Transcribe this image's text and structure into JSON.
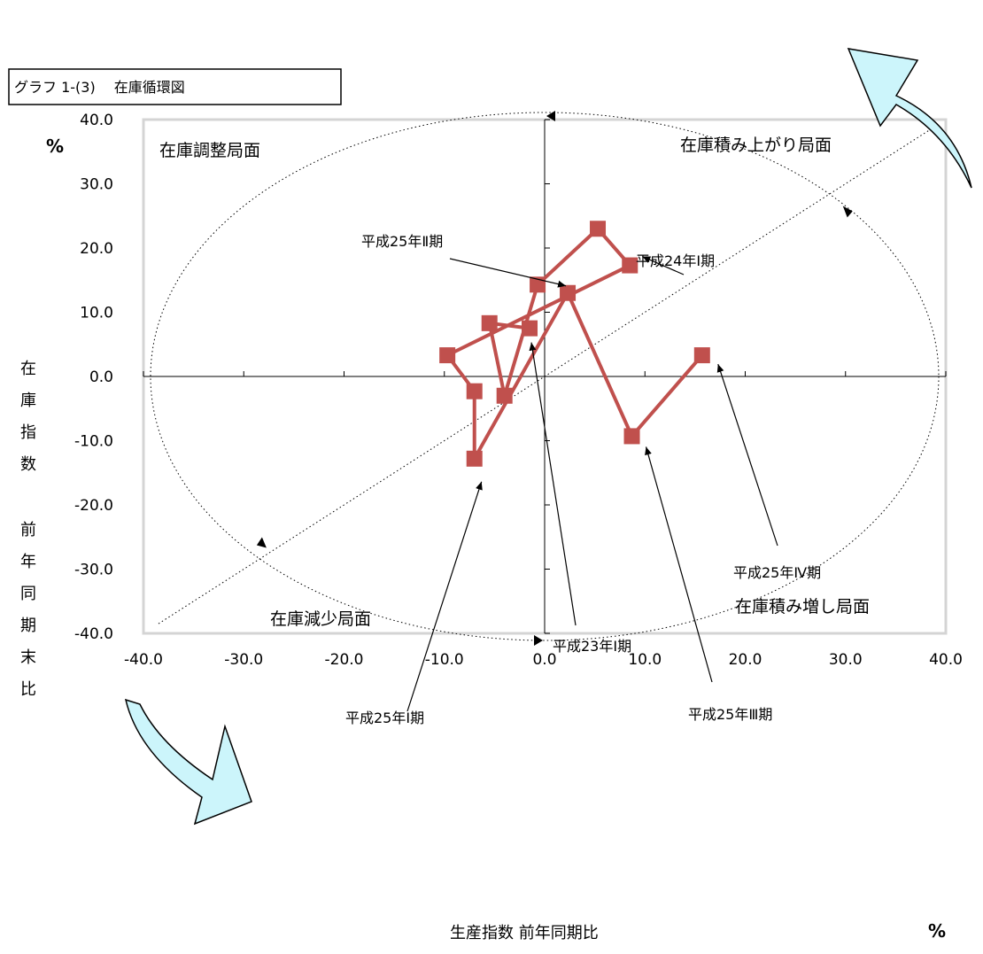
{
  "chart_data": {
    "type": "line",
    "title": "グラフ 1-(3)　 在庫循環図",
    "xlabel": "生産指数 前年同期比",
    "ylabel": "在庫指数前年同期末比",
    "x_unit": "%",
    "y_unit": "%",
    "xlim": [
      -40,
      40
    ],
    "ylim": [
      -40,
      40
    ],
    "x_ticks": [
      "-40.0",
      "-30.0",
      "-20.0",
      "-10.0",
      "0.0",
      "10.0",
      "20.0",
      "30.0",
      "40.0"
    ],
    "y_ticks": [
      "40.0",
      "30.0",
      "20.0",
      "10.0",
      "0.0",
      "-10.0",
      "-20.0",
      "-30.0",
      "-40.0"
    ],
    "grid": false,
    "series": [
      {
        "color": "#c0504d",
        "points": [
          {
            "x": -1.5,
            "y": 7.5
          },
          {
            "x": -5.5,
            "y": 8.3
          },
          {
            "x": -4.0,
            "y": -3.0
          },
          {
            "x": -0.7,
            "y": 14.3
          },
          {
            "x": 5.3,
            "y": 23.0
          },
          {
            "x": 8.5,
            "y": 17.3
          },
          {
            "x": -9.7,
            "y": 3.3
          },
          {
            "x": -7.0,
            "y": -2.3
          },
          {
            "x": -7.0,
            "y": -12.8
          },
          {
            "x": 2.3,
            "y": 13.0
          },
          {
            "x": 8.7,
            "y": -9.3
          },
          {
            "x": 15.7,
            "y": 3.3
          }
        ]
      }
    ],
    "phase_labels": {
      "top_left": "在庫調整局面",
      "top_right": "在庫積み上がり局面",
      "bottom_left": "在庫減少局面",
      "bottom_right": "在庫積み増し局面"
    },
    "annotations": [
      {
        "text": "平成25年Ⅱ期",
        "point_index": 9
      },
      {
        "text": "平成24年Ⅰ期",
        "point_index": 5
      },
      {
        "text": "平成25年Ⅳ期",
        "point_index": 11
      },
      {
        "text": "平成23年Ⅰ期",
        "point_index": 0
      },
      {
        "text": "平成25年Ⅲ期",
        "point_index": 10
      },
      {
        "text": "平成25年Ⅰ期",
        "point_index": 8
      }
    ]
  }
}
